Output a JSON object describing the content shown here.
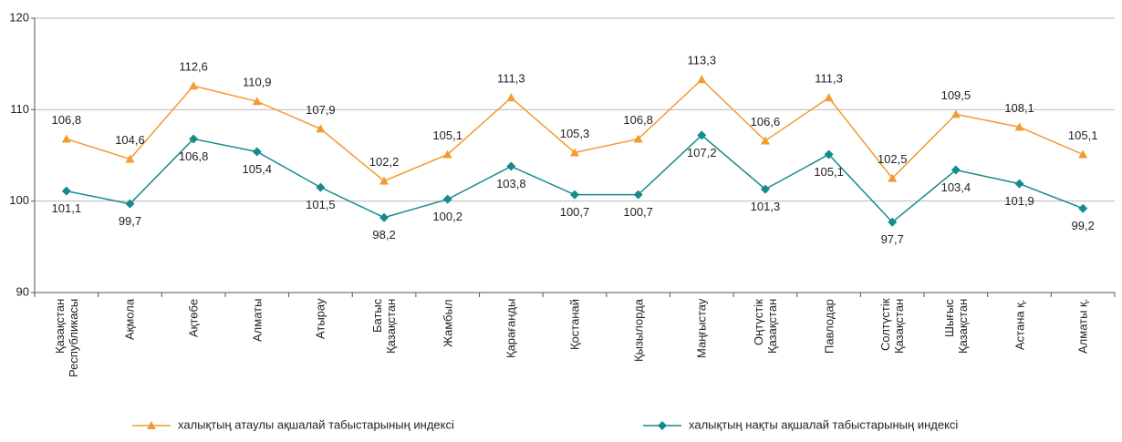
{
  "chart_data": {
    "type": "line",
    "categories": [
      "Қазақстан\nРеспубликасы",
      "Ақмола",
      "Ақтөбе",
      "Алматы",
      "Атырау",
      "Батыс\nҚазақстан",
      "Жамбыл",
      "Қарағанды",
      "Қостанай",
      "Қызылорда",
      "Маңғыстау",
      "Оңтүстік\nҚазақстан",
      "Павлодар",
      "Солтүстік\nҚазақстан",
      "Шығыс\nҚазақстан",
      "Астана  қ.",
      "Алматы қ."
    ],
    "series": [
      {
        "name": "халықтың атаулы ақшалай табыстарының индексі",
        "color": "#f39a32",
        "marker": "triangle",
        "values": [
          106.8,
          104.6,
          112.6,
          110.9,
          107.9,
          102.2,
          105.1,
          111.3,
          105.3,
          106.8,
          113.3,
          106.6,
          111.3,
          102.5,
          109.5,
          108.1,
          105.1
        ],
        "value_labels": [
          "106,8",
          "104,6",
          "112,6",
          "110,9",
          "107,9",
          "102,2",
          "105,1",
          "111,3",
          "105,3",
          "106,8",
          "113,3",
          "106,6",
          "111,3",
          "102,5",
          "109,5",
          "108,1",
          "105,1"
        ]
      },
      {
        "name": "халықтың нақты ақшалай табыстарының индексі",
        "color": "#168a8c",
        "marker": "diamond",
        "values": [
          101.1,
          99.7,
          106.8,
          105.4,
          101.5,
          98.2,
          100.2,
          103.8,
          100.7,
          100.7,
          107.2,
          101.3,
          105.1,
          97.7,
          103.4,
          101.9,
          99.2
        ],
        "value_labels": [
          "101,1",
          "99,7",
          "106,8",
          "105,4",
          "101,5",
          "98,2",
          "100,2",
          "103,8",
          "100,7",
          "100,7",
          "107,2",
          "101,3",
          "105,1",
          "97,7",
          "103,4",
          "101,9",
          "99,2"
        ]
      }
    ],
    "ylim": [
      90,
      120
    ],
    "yticks": [
      90,
      100,
      110,
      120
    ],
    "grid": true,
    "legend": "bottom"
  }
}
